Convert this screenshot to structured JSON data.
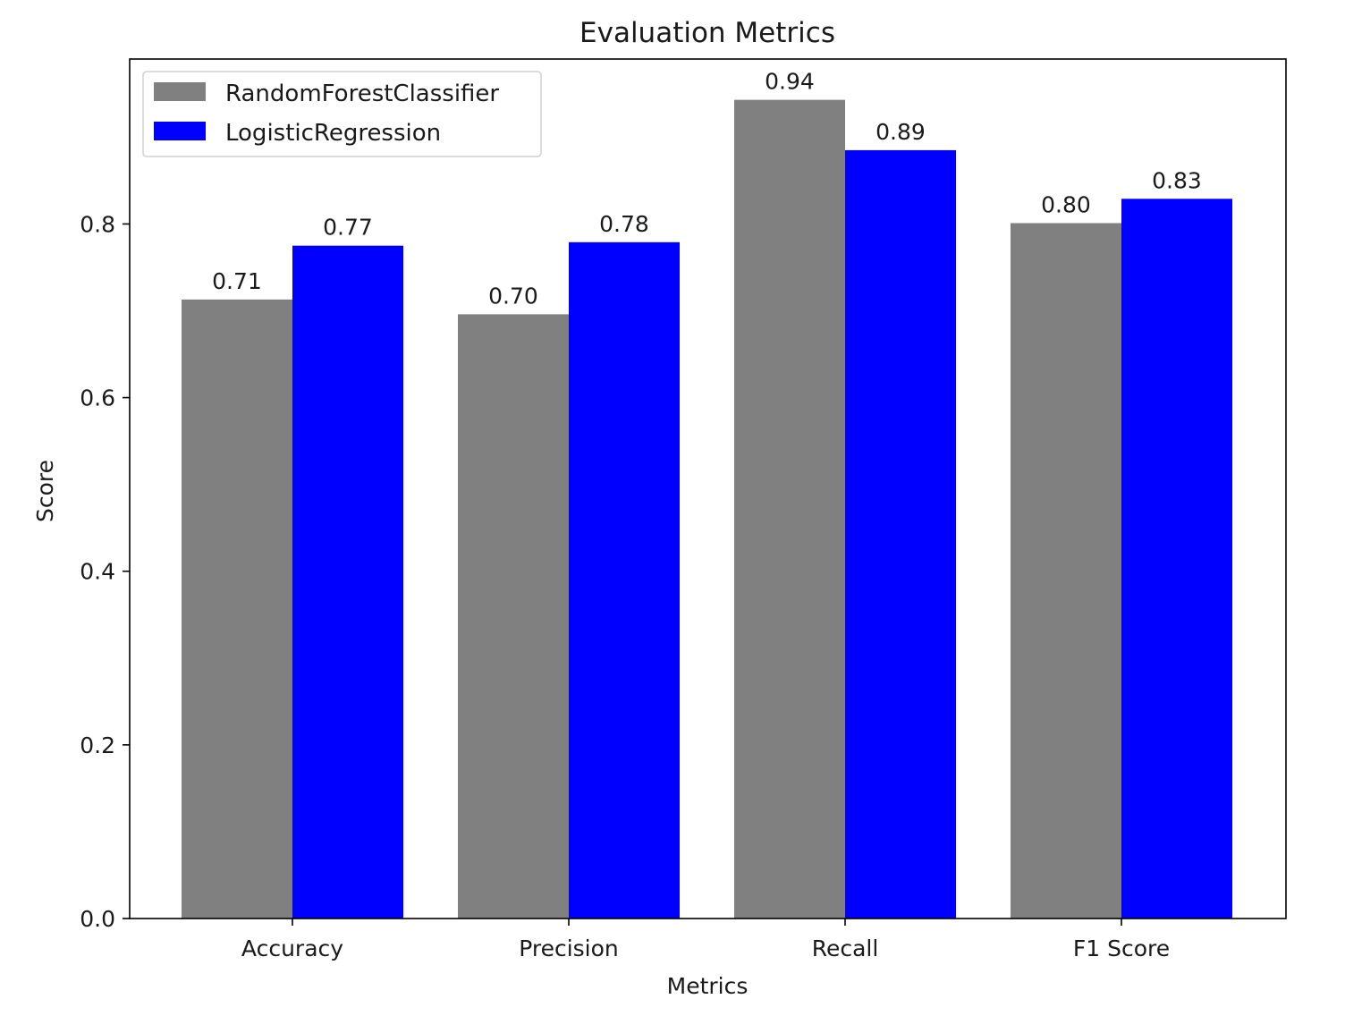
{
  "chart_data": {
    "type": "bar",
    "title": "Evaluation Metrics",
    "xlabel": "Metrics",
    "ylabel": "Score",
    "categories": [
      "Accuracy",
      "Precision",
      "Recall",
      "F1 Score"
    ],
    "series": [
      {
        "name": "RandomForestClassifier",
        "color": "#808080",
        "values": [
          0.713,
          0.696,
          0.943,
          0.801
        ],
        "labels": [
          "0.71",
          "0.70",
          "0.94",
          "0.80"
        ]
      },
      {
        "name": "LogisticRegression",
        "color": "#0000ff",
        "values": [
          0.775,
          0.779,
          0.885,
          0.829
        ],
        "labels": [
          "0.77",
          "0.78",
          "0.89",
          "0.83"
        ]
      }
    ],
    "ylim": [
      0,
      0.99
    ],
    "yticks": [
      0.0,
      0.2,
      0.4,
      0.6,
      0.8
    ],
    "ytick_labels": [
      "0.0",
      "0.2",
      "0.4",
      "0.6",
      "0.8"
    ],
    "grid": false,
    "legend": "upper-left"
  }
}
